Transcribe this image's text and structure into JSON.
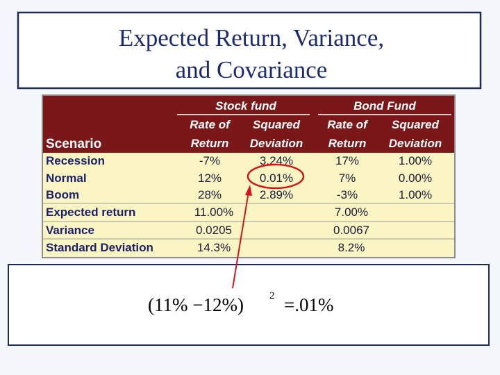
{
  "title": {
    "line1": "Expected Return, Variance,",
    "line2": "and Covariance"
  },
  "table": {
    "groups": [
      "Stock fund",
      "Bond Fund"
    ],
    "subheader1": [
      "Rate of",
      "Squared",
      "Rate of",
      "Squared"
    ],
    "subheader2": [
      "Return",
      "Deviation",
      "Return",
      "Deviation"
    ],
    "scenario_header": "Scenario",
    "rows": [
      [
        "Recession",
        "-7%",
        "3.24%",
        "17%",
        "1.00%"
      ],
      [
        "Normal",
        "12%",
        "0.01%",
        "7%",
        "0.00%"
      ],
      [
        "Boom",
        "28%",
        "2.89%",
        "-3%",
        "1.00%"
      ],
      [
        "Expected return",
        "11.00%",
        null,
        "7.00%",
        null
      ],
      [
        "Variance",
        "0.0205",
        null,
        "0.0067",
        null
      ],
      [
        "Standard Deviation",
        "14.3%",
        null,
        "8.2%",
        null
      ]
    ]
  },
  "formula": {
    "expression": "(11% −12%)",
    "exponent": "2",
    "result": "=.01%"
  }
}
